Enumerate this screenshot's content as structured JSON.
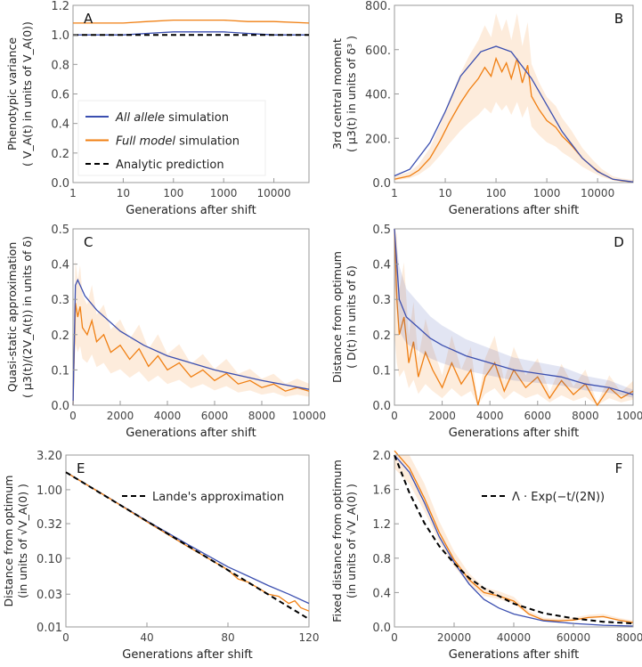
{
  "chart_data": [
    {
      "panel": "A",
      "type": "line",
      "xscale": "log",
      "xlim": [
        1,
        50000
      ],
      "ylim": [
        0,
        1.2
      ],
      "xticks": [
        1,
        10,
        100,
        1000,
        10000
      ],
      "xticklabels": [
        "1",
        "10",
        "100",
        "1000",
        "10000"
      ],
      "yticks": [
        0,
        0.2,
        0.4,
        0.6,
        0.8,
        1.0,
        1.2
      ],
      "yticklabels": [
        "0.0",
        "0.2",
        "0.4",
        "0.6",
        "0.8",
        "1.0",
        "1.2"
      ],
      "xlabel": "Generations after shift",
      "ylabel": [
        "Phenotypic variance",
        "( V_A(t)  in units of  V_A(0))"
      ],
      "legend": {
        "placement": "bottom-left",
        "entries": [
          {
            "italic": "All allele",
            "text": " simulation",
            "color": "#3b4fb0",
            "dash": false
          },
          {
            "italic": "Full model",
            "text": " simulation",
            "color": "#f07f12",
            "dash": false
          },
          {
            "italic": "",
            "text": "Analytic prediction",
            "color": "#000000",
            "dash": true
          }
        ]
      },
      "series": [
        {
          "color": "#3b4fb0",
          "x": [
            1,
            10,
            30,
            100,
            300,
            1000,
            3000,
            10000,
            50000
          ],
          "y": [
            1.0,
            1.0,
            1.01,
            1.02,
            1.02,
            1.02,
            1.01,
            1.0,
            1.0
          ]
        },
        {
          "color": "#f07f12",
          "x": [
            1,
            10,
            30,
            100,
            300,
            1000,
            3000,
            10000,
            50000
          ],
          "y": [
            1.08,
            1.08,
            1.09,
            1.1,
            1.1,
            1.1,
            1.09,
            1.09,
            1.08
          ]
        },
        {
          "color": "#000000",
          "dash": true,
          "x": [
            1,
            50000
          ],
          "y": [
            1.0,
            1.0
          ]
        }
      ]
    },
    {
      "panel": "B",
      "type": "line",
      "xscale": "log",
      "xlim": [
        1,
        50000
      ],
      "ylim": [
        0,
        800
      ],
      "xticks": [
        1,
        10,
        100,
        1000,
        10000
      ],
      "xticklabels": [
        "1",
        "10",
        "100",
        "1000",
        "10000"
      ],
      "yticks": [
        0,
        200,
        400,
        600,
        800
      ],
      "yticklabels": [
        "0.0",
        "200.",
        "400.",
        "600.",
        "800."
      ],
      "xlabel": "Generations after shift",
      "ylabel": [
        "3rd central moment",
        "( μ3(t)  in units of  δ³ )"
      ],
      "series": [
        {
          "color": "#f07f12",
          "band": 0.35,
          "x": [
            1,
            2,
            3,
            5,
            8,
            12,
            20,
            30,
            45,
            60,
            80,
            100,
            130,
            160,
            200,
            260,
            330,
            420,
            500,
            700,
            1000,
            1500,
            2000,
            3000,
            5000,
            8000,
            12000,
            20000,
            30000,
            50000
          ],
          "y": [
            15,
            30,
            55,
            110,
            190,
            270,
            360,
            420,
            470,
            520,
            480,
            560,
            500,
            540,
            470,
            560,
            450,
            530,
            390,
            330,
            280,
            250,
            210,
            170,
            110,
            70,
            40,
            15,
            8,
            3
          ]
        },
        {
          "color": "#3b4fb0",
          "x": [
            1,
            2,
            5,
            10,
            20,
            50,
            100,
            200,
            500,
            1000,
            2000,
            5000,
            10000,
            20000,
            50000
          ],
          "y": [
            30,
            60,
            180,
            320,
            480,
            590,
            615,
            590,
            470,
            350,
            230,
            110,
            50,
            15,
            3
          ]
        }
      ]
    },
    {
      "panel": "C",
      "type": "line",
      "xscale": "linear",
      "xlim": [
        0,
        10000
      ],
      "ylim": [
        0,
        0.5
      ],
      "xticks": [
        0,
        2000,
        4000,
        6000,
        8000,
        10000
      ],
      "xticklabels": [
        "0",
        "2000",
        "4000",
        "6000",
        "8000",
        "10000"
      ],
      "yticks": [
        0,
        0.1,
        0.2,
        0.3,
        0.4,
        0.5
      ],
      "yticklabels": [
        "0.0",
        "0.1",
        "0.2",
        "0.3",
        "0.4",
        "0.5"
      ],
      "xlabel": "Generations after shift",
      "ylabel": [
        "Quasi-static approximation",
        "( μ3(t)/(2V_A(t))  in units of  δ)"
      ],
      "series": [
        {
          "color": "#f07f12",
          "band": 0.4,
          "x": [
            0,
            100,
            200,
            300,
            400,
            600,
            800,
            1000,
            1300,
            1600,
            2000,
            2400,
            2800,
            3200,
            3600,
            4000,
            4500,
            5000,
            5500,
            6000,
            6500,
            7000,
            7500,
            8000,
            8500,
            9000,
            9500,
            10000
          ],
          "y": [
            0,
            0.29,
            0.25,
            0.28,
            0.22,
            0.2,
            0.24,
            0.18,
            0.2,
            0.15,
            0.17,
            0.13,
            0.16,
            0.11,
            0.14,
            0.1,
            0.12,
            0.08,
            0.1,
            0.07,
            0.09,
            0.06,
            0.07,
            0.05,
            0.06,
            0.04,
            0.05,
            0.04
          ]
        },
        {
          "color": "#3b4fb0",
          "x": [
            0,
            100,
            200,
            500,
            1000,
            2000,
            3000,
            4000,
            6000,
            8000,
            10000
          ],
          "y": [
            0,
            0.34,
            0.355,
            0.31,
            0.27,
            0.21,
            0.17,
            0.14,
            0.1,
            0.07,
            0.045
          ]
        }
      ]
    },
    {
      "panel": "D",
      "type": "line",
      "xscale": "linear",
      "xlim": [
        0,
        10000
      ],
      "ylim": [
        0,
        0.5
      ],
      "xticks": [
        0,
        2000,
        4000,
        6000,
        8000,
        10000
      ],
      "xticklabels": [
        "0",
        "2000",
        "4000",
        "6000",
        "8000",
        "10000"
      ],
      "yticks": [
        0,
        0.1,
        0.2,
        0.3,
        0.4,
        0.5
      ],
      "yticklabels": [
        "0.0",
        "0.1",
        "0.2",
        "0.3",
        "0.4",
        "0.5"
      ],
      "xlabel": "Generations after shift",
      "ylabel": [
        "Distance from optimum",
        "( D(t)  in units of  δ)"
      ],
      "series": [
        {
          "color": "#f07f12",
          "band": 0.6,
          "x": [
            0,
            100,
            200,
            400,
            600,
            800,
            1000,
            1300,
            1600,
            2000,
            2400,
            2800,
            3200,
            3500,
            3800,
            4200,
            4600,
            5000,
            5500,
            6000,
            6500,
            7000,
            7500,
            8000,
            8500,
            9000,
            9500,
            10000
          ],
          "y": [
            0.5,
            0.3,
            0.2,
            0.25,
            0.12,
            0.18,
            0.08,
            0.15,
            0.1,
            0.05,
            0.12,
            0.06,
            0.1,
            0.0,
            0.08,
            0.12,
            0.04,
            0.1,
            0.05,
            0.08,
            0.02,
            0.07,
            0.03,
            0.06,
            0.0,
            0.05,
            0.02,
            0.04
          ]
        },
        {
          "color": "#3b4fb0",
          "band": 0.3,
          "x": [
            0,
            200,
            500,
            1000,
            1500,
            2000,
            3000,
            4000,
            5000,
            6000,
            7000,
            8000,
            9000,
            10000
          ],
          "y": [
            0.5,
            0.3,
            0.25,
            0.22,
            0.19,
            0.17,
            0.14,
            0.12,
            0.1,
            0.09,
            0.08,
            0.06,
            0.05,
            0.03
          ]
        }
      ]
    },
    {
      "panel": "E",
      "type": "line",
      "xscale": "linear",
      "yscale": "log",
      "xlim": [
        0,
        120
      ],
      "ylim": [
        0.01,
        3.2
      ],
      "xticks": [
        0,
        40,
        80,
        120
      ],
      "xticklabels": [
        "0",
        "40",
        "80",
        "120"
      ],
      "yticks": [
        0.01,
        0.03,
        0.1,
        0.32,
        1.0,
        3.2
      ],
      "yticklabels": [
        "0.01",
        "0.03",
        "0.10",
        "0.32",
        "1.00",
        "3.20"
      ],
      "xlabel": "Generations after shift",
      "ylabel": [
        "Distance from optimum",
        "(in units of  √V_A(0) )"
      ],
      "legend": {
        "placement": "top-right",
        "entries": [
          {
            "italic": "",
            "text": "Lande's approximation",
            "color": "#000000",
            "dash": true
          }
        ]
      },
      "series": [
        {
          "color": "#3b4fb0",
          "x": [
            0,
            20,
            40,
            60,
            80,
            90,
            100,
            110,
            120
          ],
          "y": [
            1.8,
            0.8,
            0.35,
            0.16,
            0.075,
            0.055,
            0.04,
            0.03,
            0.022
          ]
        },
        {
          "color": "#f07f12",
          "x": [
            0,
            20,
            40,
            60,
            80,
            85,
            90,
            100,
            105,
            110,
            113,
            116,
            120
          ],
          "y": [
            1.8,
            0.8,
            0.34,
            0.15,
            0.068,
            0.05,
            0.045,
            0.03,
            0.028,
            0.022,
            0.024,
            0.019,
            0.017
          ]
        },
        {
          "color": "#000000",
          "dash": true,
          "x": [
            0,
            120
          ],
          "y": [
            1.8,
            0.013
          ]
        }
      ]
    },
    {
      "panel": "F",
      "type": "line",
      "xscale": "linear",
      "xlim": [
        0,
        80000
      ],
      "ylim": [
        0,
        2.0
      ],
      "xticks": [
        0,
        20000,
        40000,
        60000,
        80000
      ],
      "xticklabels": [
        "0",
        "20000",
        "40000",
        "60000",
        "80000"
      ],
      "yticks": [
        0,
        0.4,
        0.8,
        1.2,
        1.6,
        2.0
      ],
      "yticklabels": [
        "0.0",
        "0.4",
        "0.8",
        "1.2",
        "1.6",
        "2.0"
      ],
      "xlabel": "Generations after shift",
      "ylabel": [
        "Fixed distance from optimum",
        "(in units of  √V_A(0) )"
      ],
      "legend": {
        "placement": "top-right",
        "entries": [
          {
            "italic": "",
            "text": "Λ · Exp(−t/(2N))",
            "color": "#000000",
            "dash": true
          }
        ]
      },
      "series": [
        {
          "color": "#f07f12",
          "band": 0.1,
          "x": [
            0,
            5000,
            10000,
            15000,
            20000,
            25000,
            30000,
            35000,
            40000,
            45000,
            50000,
            55000,
            60000,
            65000,
            70000,
            75000,
            80000
          ],
          "y": [
            2.05,
            1.85,
            1.5,
            1.1,
            0.78,
            0.55,
            0.4,
            0.36,
            0.3,
            0.15,
            0.08,
            0.07,
            0.08,
            0.11,
            0.12,
            0.08,
            0.05
          ]
        },
        {
          "color": "#3b4fb0",
          "x": [
            0,
            5000,
            10000,
            15000,
            20000,
            25000,
            30000,
            35000,
            40000,
            50000,
            60000,
            70000,
            80000
          ],
          "y": [
            2.0,
            1.8,
            1.45,
            1.05,
            0.75,
            0.5,
            0.32,
            0.22,
            0.15,
            0.07,
            0.04,
            0.02,
            0.01
          ]
        },
        {
          "color": "#000000",
          "dash": true,
          "fn": "exp",
          "x": [
            0,
            5000,
            10000,
            15000,
            20000,
            25000,
            30000,
            40000,
            50000,
            60000,
            70000,
            80000
          ],
          "y": [
            2.0,
            1.56,
            1.21,
            0.94,
            0.74,
            0.57,
            0.45,
            0.27,
            0.16,
            0.1,
            0.06,
            0.04
          ]
        }
      ]
    }
  ]
}
